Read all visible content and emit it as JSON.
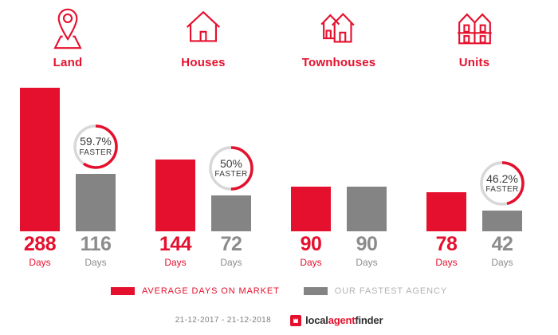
{
  "categories": [
    {
      "label": "Land",
      "icon": "map-pin"
    },
    {
      "label": "Houses",
      "icon": "house"
    },
    {
      "label": "Townhouses",
      "icon": "townhouses"
    },
    {
      "label": "Units",
      "icon": "units"
    }
  ],
  "chart_data": {
    "type": "bar",
    "categories": [
      "Land",
      "Houses",
      "Townhouses",
      "Units"
    ],
    "series": [
      {
        "name": "AVERAGE DAYS ON MARKET",
        "color": "#e5102d",
        "values": [
          288,
          144,
          90,
          78
        ]
      },
      {
        "name": "OUR FASTEST AGENCY",
        "color": "#848484",
        "values": [
          116,
          72,
          90,
          42
        ]
      }
    ],
    "unit_label": "Days",
    "ylim": [
      0,
      288
    ],
    "grid": false,
    "legend_position": "bottom",
    "badges": [
      {
        "category": "Land",
        "percent": 59.7,
        "label": "59.7%",
        "sublabel": "FASTER"
      },
      {
        "category": "Houses",
        "percent": 50,
        "label": "50%",
        "sublabel": "FASTER"
      },
      {
        "category": "Units",
        "percent": 46.2,
        "label": "46.2%",
        "sublabel": "FASTER"
      }
    ]
  },
  "legend": {
    "items": [
      {
        "label": "AVERAGE DAYS ON MARKET",
        "color": "#e5102d"
      },
      {
        "label": "OUR FASTEST AGENCY",
        "color": "#848484"
      }
    ]
  },
  "footer": {
    "date_range": "21-12-2017 - 21-12-2018",
    "logo": {
      "part1": "local",
      "part2": "agent",
      "part3": "finder"
    }
  },
  "colors": {
    "red": "#e5102d",
    "gray_bar": "#848484",
    "gray_text": "#8c8c8c",
    "legend_gray_text": "#b2b2b2",
    "badge_ring": "#d8d8d8",
    "badge_text": "#3a3a3a",
    "date_text": "#7f7f7f",
    "logo_dark": "#2e2e2e"
  }
}
